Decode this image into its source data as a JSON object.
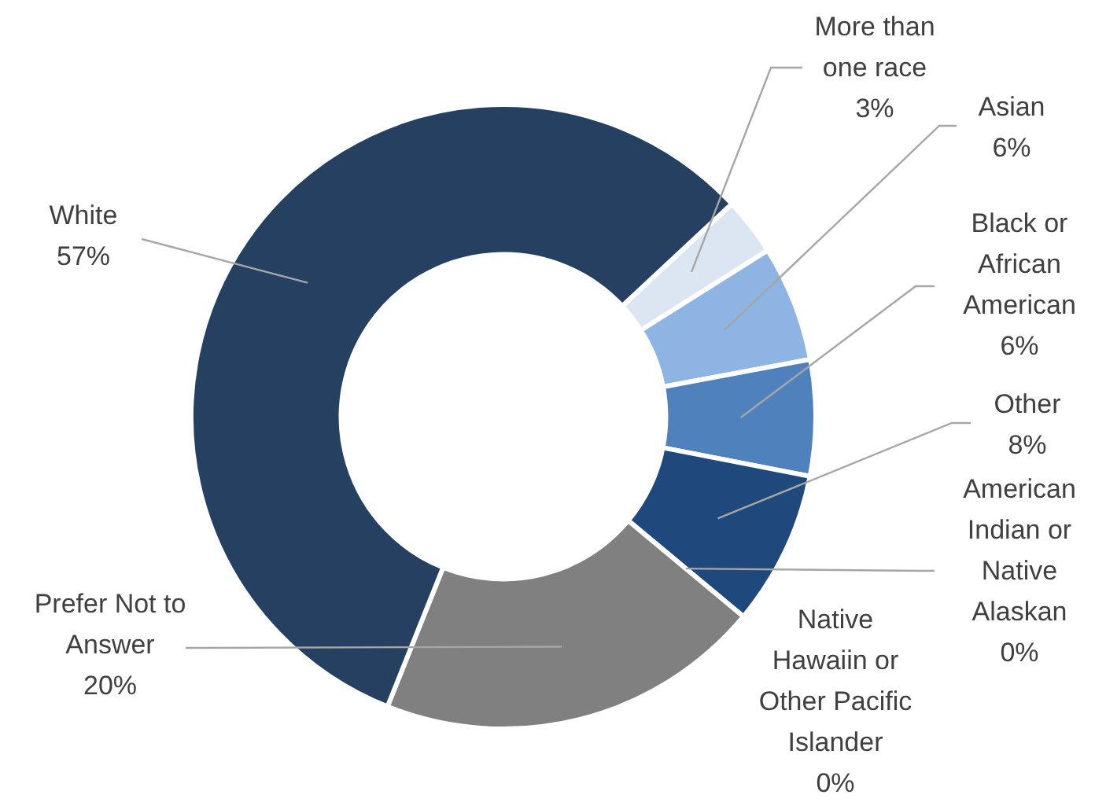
{
  "chart_data": {
    "type": "donut",
    "categories": [
      "More than one race",
      "Asian",
      "Black or African American",
      "Other",
      "American Indian or Native Alaskan",
      "Native Hawaiin or Other Pacific Islander",
      "Prefer Not to Answer",
      "White"
    ],
    "values": [
      3,
      6,
      6,
      8,
      0,
      0,
      20,
      57
    ],
    "colors": [
      "#dce6f2",
      "#8eb4e3",
      "#4f81bd",
      "#1f497d",
      "#17375e",
      "#10253f",
      "#808080",
      "#254061"
    ],
    "value_labels": [
      "3%",
      "6%",
      "6%",
      "8%",
      "0%",
      "0%",
      "20%",
      "57%"
    ],
    "legend": false
  }
}
